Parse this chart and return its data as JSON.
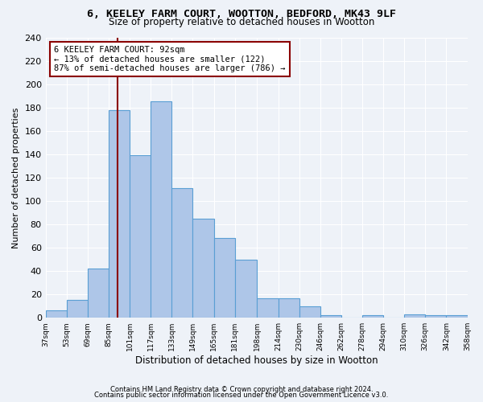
{
  "title_line1": "6, KEELEY FARM COURT, WOOTTON, BEDFORD, MK43 9LF",
  "title_line2": "Size of property relative to detached houses in Wootton",
  "xlabel": "Distribution of detached houses by size in Wootton",
  "ylabel": "Number of detached properties",
  "bar_color": "#aec6e8",
  "bar_edgecolor": "#5a9fd4",
  "vline_x": 92,
  "vline_color": "#8b0000",
  "annotation_title": "6 KEELEY FARM COURT: 92sqm",
  "annotation_line2": "← 13% of detached houses are smaller (122)",
  "annotation_line3": "87% of semi-detached houses are larger (786) →",
  "annotation_box_color": "white",
  "annotation_box_edgecolor": "#8b0000",
  "bin_edges": [
    37,
    53,
    69,
    85,
    101,
    117,
    133,
    149,
    165,
    181,
    198,
    214,
    230,
    246,
    262,
    278,
    294,
    310,
    326,
    342,
    358
  ],
  "bar_heights": [
    6,
    15,
    42,
    178,
    139,
    185,
    111,
    85,
    68,
    50,
    17,
    17,
    10,
    2,
    0,
    2,
    0,
    3,
    2,
    2
  ],
  "ylim": [
    0,
    240
  ],
  "yticks": [
    0,
    20,
    40,
    60,
    80,
    100,
    120,
    140,
    160,
    180,
    200,
    220,
    240
  ],
  "footer_line1": "Contains HM Land Registry data © Crown copyright and database right 2024.",
  "footer_line2": "Contains public sector information licensed under the Open Government Licence v3.0.",
  "background_color": "#eef2f8",
  "grid_color": "white"
}
